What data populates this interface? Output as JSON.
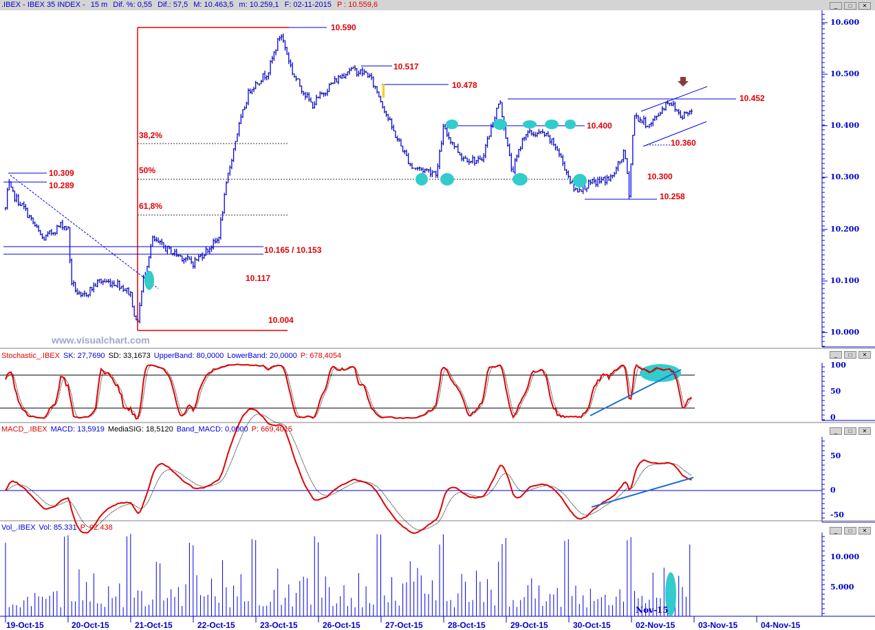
{
  "header": {
    "symbol": ".IBEX - IBEX 35 INDEX -",
    "timeframe": "15 m",
    "dif_pct": "Dif. %: 0,55",
    "dif": "Dif.: 57,5",
    "max": "M: 10.463,5",
    "min": "m: 10.259,1",
    "date": "F: 02-11-2015",
    "price": "P : 10.559,6"
  },
  "window_buttons": {
    "minimize": "_",
    "maximize": "□",
    "close": "✕"
  },
  "watermark": "www.visualchart.com",
  "stochastic": {
    "name": "Stochastic_.IBEX",
    "sk": "SK: 27,7690",
    "sd": "SD: 33,1673",
    "upper": "UpperBand: 80,0000",
    "lower": "LowerBand: 20,0000",
    "p": "P: 678,4054"
  },
  "macd": {
    "name": "MACD_.IBEX",
    "macd": "MACD: 13,5919",
    "sig": "MediaSIG: 18,5120",
    "band": "Band_MACD: 0,0000",
    "p": "P: 669,4015"
  },
  "volume": {
    "name": "Vol_.IBEX",
    "vol": "Vol: 85.331",
    "p": "P: 92.438",
    "overlay_label": "Nov-15"
  },
  "annotations": {
    "a10590": "10.590",
    "a10517": "10.517",
    "a10478": "10.478",
    "a10452": "10.452",
    "a10400": "10.400",
    "a10360": "10.360",
    "a10300": "10.300",
    "a10258": "10.258",
    "a10309": "10.309",
    "a10289": "10.289",
    "a10165": "10.165 / 10.153",
    "a10117": "10.117",
    "a10004": "10.004",
    "f382": "38,2%",
    "f50": "50%",
    "f618": "61,8%"
  },
  "colors": {
    "price": "#0000ee",
    "stoch_k": "#e00000",
    "fib": "#e00000",
    "highlight": "#33cccc",
    "trend": "#1e6fd0",
    "arrow": "#8b3a3a"
  },
  "chart_data": [
    {
      "type": "bar",
      "title": ".IBEX - IBEX 35 INDEX - 15 m",
      "ylim": [
        10000,
        10600
      ],
      "yticks": [
        "10.600",
        "10.500",
        "10.400",
        "10.300",
        "10.200",
        "10.100",
        "10.000"
      ],
      "xticks": [
        "19-Oct-15",
        "20-Oct-15",
        "21-Oct-15",
        "22-Oct-15",
        "23-Oct-15",
        "26-Oct-15",
        "27-Oct-15",
        "28-Oct-15",
        "29-Oct-15",
        "30-Oct-15",
        "02-Nov-15",
        "03-Nov-15",
        "04-Nov-15"
      ],
      "price_path_day_index": [
        [
          0,
          10240
        ],
        [
          0.05,
          10290
        ],
        [
          0.1,
          10270
        ],
        [
          0.3,
          10240
        ],
        [
          0.6,
          10180
        ],
        [
          0.9,
          10210
        ],
        [
          1.0,
          10200
        ],
        [
          1.05,
          10100
        ],
        [
          1.2,
          10065
        ],
        [
          1.5,
          10100
        ],
        [
          1.8,
          10095
        ],
        [
          2.0,
          10075
        ],
        [
          2.1,
          10010
        ],
        [
          2.2,
          10100
        ],
        [
          2.35,
          10180
        ],
        [
          2.6,
          10160
        ],
        [
          3.0,
          10135
        ],
        [
          3.4,
          10180
        ],
        [
          3.55,
          10300
        ],
        [
          3.7,
          10385
        ],
        [
          3.9,
          10470
        ],
        [
          4.2,
          10505
        ],
        [
          4.4,
          10580
        ],
        [
          4.6,
          10500
        ],
        [
          4.9,
          10440
        ],
        [
          5.2,
          10480
        ],
        [
          5.5,
          10510
        ],
        [
          5.8,
          10500
        ],
        [
          5.95,
          10465
        ],
        [
          6.2,
          10390
        ],
        [
          6.5,
          10320
        ],
        [
          6.9,
          10310
        ],
        [
          7.0,
          10395
        ],
        [
          7.3,
          10340
        ],
        [
          7.6,
          10330
        ],
        [
          7.85,
          10430
        ],
        [
          7.9,
          10450
        ],
        [
          8.1,
          10310
        ],
        [
          8.3,
          10385
        ],
        [
          8.6,
          10385
        ],
        [
          8.8,
          10360
        ],
        [
          9.1,
          10275
        ],
        [
          9.4,
          10290
        ],
        [
          9.7,
          10300
        ],
        [
          9.9,
          10350
        ],
        [
          9.97,
          10270
        ],
        [
          10.05,
          10420
        ],
        [
          10.3,
          10400
        ],
        [
          10.6,
          10450
        ],
        [
          10.8,
          10420
        ],
        [
          10.98,
          10430
        ]
      ]
    },
    {
      "type": "line",
      "title": "Stochastic_.IBEX",
      "ylim": [
        0,
        100
      ],
      "yticks": [
        "100",
        "50",
        "0"
      ],
      "bands": [
        20,
        80
      ]
    },
    {
      "type": "line",
      "title": "MACD_.IBEX",
      "ylim": [
        -50,
        80
      ],
      "yticks": [
        "50",
        "0",
        "-50"
      ]
    },
    {
      "type": "bar",
      "title": "Vol_.IBEX",
      "yticks": [
        "10.000",
        "5.000"
      ]
    }
  ]
}
